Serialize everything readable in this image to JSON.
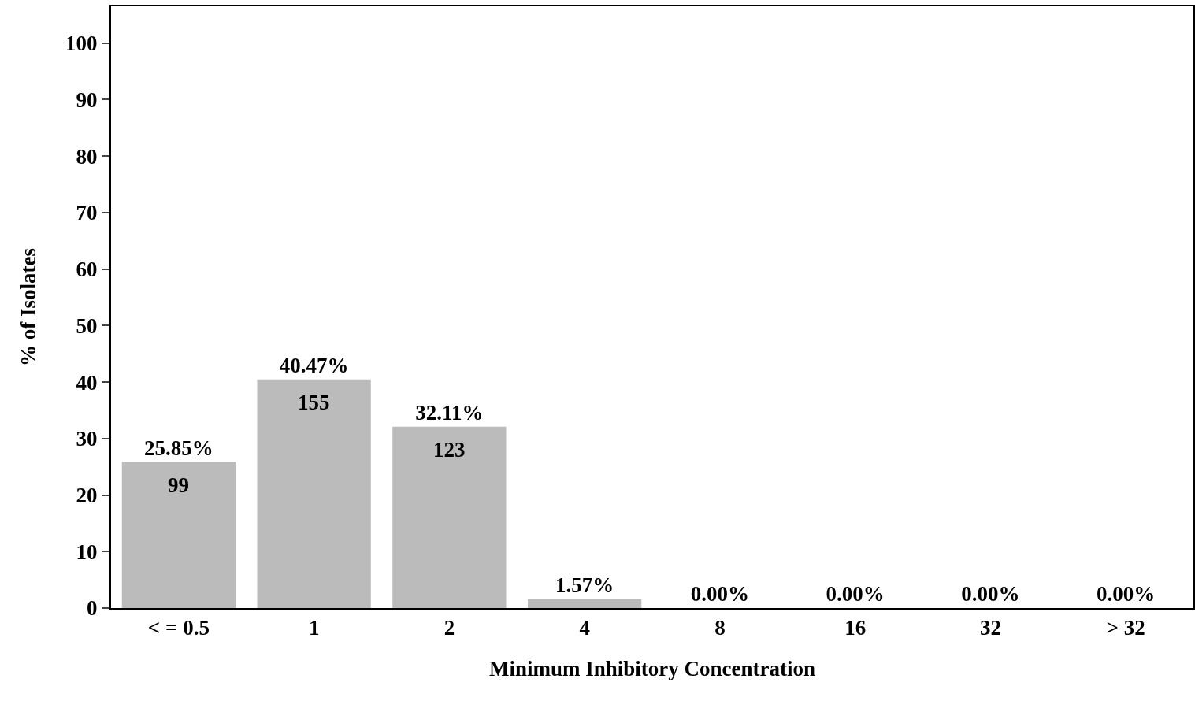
{
  "chart_data": {
    "type": "bar",
    "xlabel": "Minimum Inhibitory Concentration",
    "ylabel": "% of Isolates",
    "categories": [
      "< = 0.5",
      "1",
      "2",
      "4",
      "8",
      "16",
      "32",
      "> 32"
    ],
    "values": [
      25.85,
      40.47,
      32.11,
      1.57,
      0,
      0,
      0,
      0
    ],
    "value_labels": [
      "25.85%",
      "40.47%",
      "32.11%",
      "1.57%",
      "0.00%",
      "0.00%",
      "0.00%",
      "0.00%"
    ],
    "color": "#bbbbbb",
    "ylim": [
      0,
      106.5
    ],
    "yticks": [
      0,
      10,
      20,
      30,
      40,
      50,
      60,
      70,
      80,
      90,
      100
    ],
    "grid": false,
    "legend": false,
    "annotations": [
      {
        "text": "99",
        "x": "< = 0.5",
        "y": 25.85
      },
      {
        "text": "155",
        "x": "1",
        "y": 40.47
      },
      {
        "text": "123",
        "x": "2",
        "y": 32.11
      }
    ]
  }
}
